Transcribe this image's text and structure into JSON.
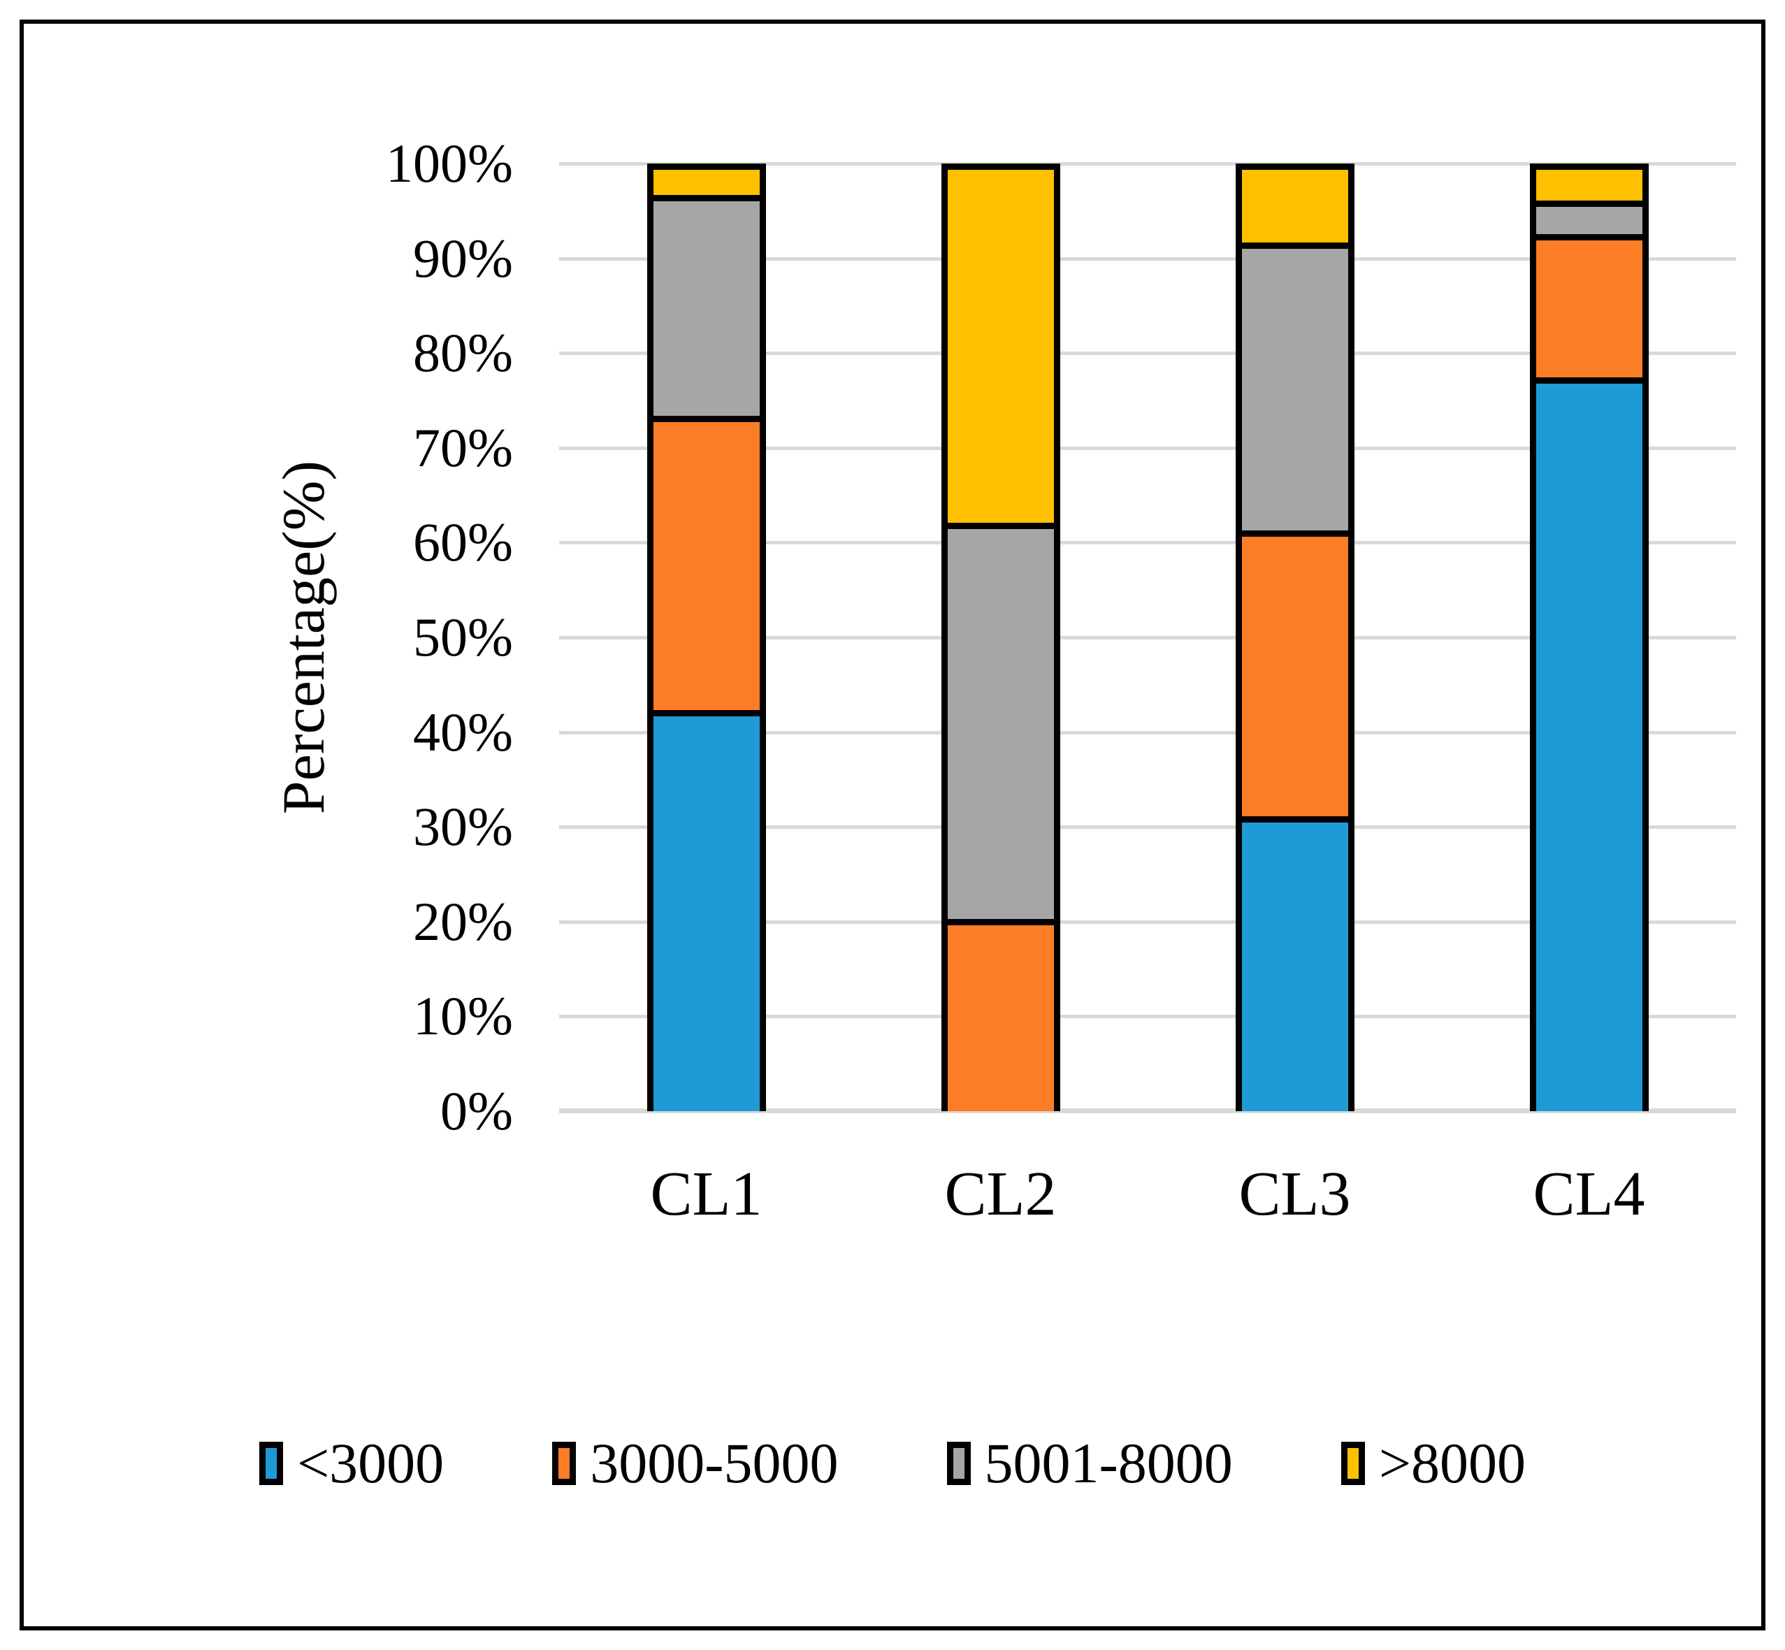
{
  "chart_data": {
    "type": "bar",
    "subtype": "stacked-100",
    "title": "",
    "xlabel": "",
    "ylabel": "Percentage(%)",
    "categories": [
      "CL1",
      "CL2",
      "CL3",
      "CL4"
    ],
    "series": [
      {
        "name": "<3000",
        "color": "#1e9bd7",
        "values": [
          42.8,
          0.0,
          31.3,
          78.9
        ]
      },
      {
        "name": "3000-5000",
        "color": "#fd7d26",
        "values": [
          31.2,
          20.0,
          30.3,
          14.8
        ]
      },
      {
        "name": "5001-8000",
        "color": "#a6a6a6",
        "values": [
          23.3,
          42.0,
          30.5,
          3.0
        ]
      },
      {
        "name": ">8000",
        "color": "#ffc000",
        "values": [
          2.7,
          38.0,
          7.9,
          3.3
        ]
      }
    ],
    "y_ticks": [
      "0%",
      "10%",
      "20%",
      "30%",
      "40%",
      "50%",
      "60%",
      "70%",
      "80%",
      "90%",
      "100%"
    ],
    "ylim": [
      0,
      100
    ],
    "grid": true,
    "gridline_color": "#d9d9d9",
    "bar_border_color": "#000000",
    "legend_position": "bottom"
  }
}
